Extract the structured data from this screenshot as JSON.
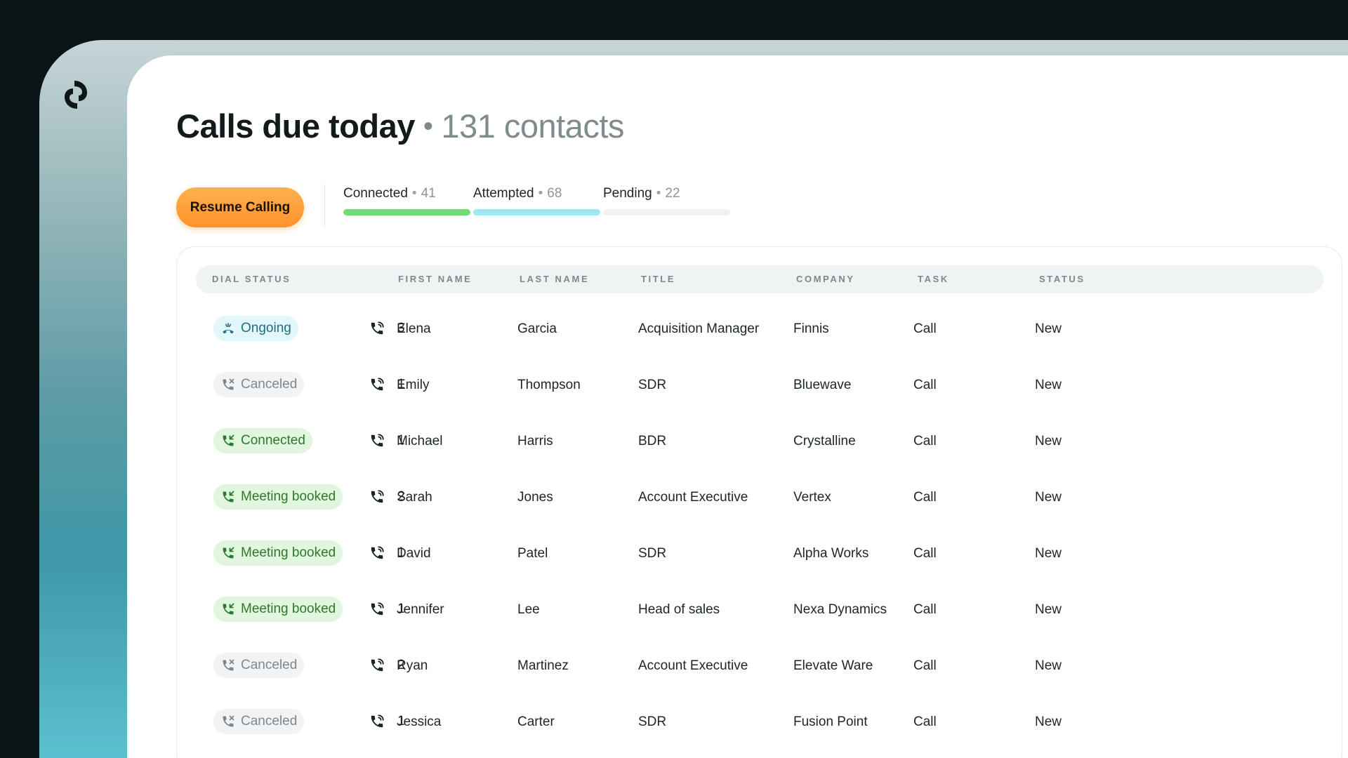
{
  "header": {
    "title": "Calls due today",
    "separator": "•",
    "contacts_count": "131 contacts"
  },
  "actions": {
    "resume_label": "Resume Calling"
  },
  "progress": [
    {
      "label": "Connected",
      "count": "41",
      "color": "#6fdd72"
    },
    {
      "label": "Attempted",
      "count": "68",
      "color": "#9de9f3"
    },
    {
      "label": "Pending",
      "count": "22",
      "color": "#eff2f3"
    }
  ],
  "table": {
    "columns": [
      "DIAL STATUS",
      "FIRST NAME",
      "LAST NAME",
      "TITLE",
      "COMPANY",
      "TASK",
      "STATUS"
    ],
    "rows": [
      {
        "dial_status": "Ongoing",
        "status_kind": "ongoing",
        "attempts": "3",
        "first_name": "Elena",
        "last_name": "Garcia",
        "title": "Acquisition Manager",
        "company": "Finnis",
        "task": "Call",
        "status": "New"
      },
      {
        "dial_status": "Canceled",
        "status_kind": "canceled",
        "attempts": "1",
        "first_name": "Emily",
        "last_name": "Thompson",
        "title": "SDR",
        "company": "Bluewave",
        "task": "Call",
        "status": "New"
      },
      {
        "dial_status": "Connected",
        "status_kind": "connected",
        "attempts": "1",
        "first_name": "Michael",
        "last_name": "Harris",
        "title": "BDR",
        "company": "Crystalline",
        "task": "Call",
        "status": "New"
      },
      {
        "dial_status": "Meeting booked",
        "status_kind": "meeting",
        "attempts": "2",
        "first_name": "Sarah",
        "last_name": "Jones",
        "title": "Account Executive",
        "company": "Vertex",
        "task": "Call",
        "status": "New"
      },
      {
        "dial_status": "Meeting booked",
        "status_kind": "meeting",
        "attempts": "1",
        "first_name": "David",
        "last_name": "Patel",
        "title": "SDR",
        "company": "Alpha Works",
        "task": "Call",
        "status": "New"
      },
      {
        "dial_status": "Meeting booked",
        "status_kind": "meeting",
        "attempts": "1",
        "first_name": "Jennifer",
        "last_name": "Lee",
        "title": "Head of sales",
        "company": "Nexa Dynamics",
        "task": "Call",
        "status": "New"
      },
      {
        "dial_status": "Canceled",
        "status_kind": "canceled",
        "attempts": "2",
        "first_name": "Ryan",
        "last_name": "Martinez",
        "title": "Account Executive",
        "company": "Elevate Ware",
        "task": "Call",
        "status": "New"
      },
      {
        "dial_status": "Canceled",
        "status_kind": "canceled",
        "attempts": "1",
        "first_name": "Jessica",
        "last_name": "Carter",
        "title": "SDR",
        "company": "Fusion Point",
        "task": "Call",
        "status": "New"
      }
    ]
  },
  "icons": {
    "logo": "brand-logo-icon",
    "ongoing": "phone-ringing-icon",
    "canceled": "phone-canceled-icon",
    "connected": "phone-incoming-icon",
    "meeting": "phone-incoming-icon",
    "attempts": "phone-icon"
  }
}
